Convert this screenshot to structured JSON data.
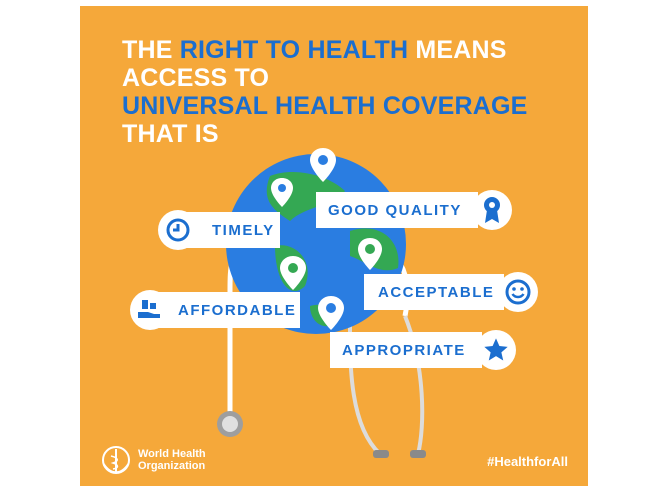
{
  "headline": {
    "line1_a": "THE ",
    "line1_b": "RIGHT TO HEALTH",
    "line1_c": " MEANS",
    "line2": "ACCESS TO",
    "line3": "UNIVERSAL HEALTH COVERAGE",
    "line4": "THAT IS"
  },
  "qualities": {
    "timely": {
      "label": "TIMELY",
      "icon": "clock-icon"
    },
    "good_quality": {
      "label": "GOOD QUALITY",
      "icon": "rosette-icon"
    },
    "acceptable": {
      "label": "ACCEPTABLE",
      "icon": "smiley-icon"
    },
    "affordable": {
      "label": "AFFORDABLE",
      "icon": "coins-hand-icon"
    },
    "appropriate": {
      "label": "APPROPRIATE",
      "icon": "star-icon"
    }
  },
  "footer": {
    "organization": "World Health Organization",
    "hashtag": "#HealthforAll"
  },
  "colors": {
    "background": "#f5a83a",
    "accent_blue": "#1b6ecf",
    "globe_blue": "#2a7de1",
    "land_green": "#34a853",
    "white": "#ffffff"
  }
}
